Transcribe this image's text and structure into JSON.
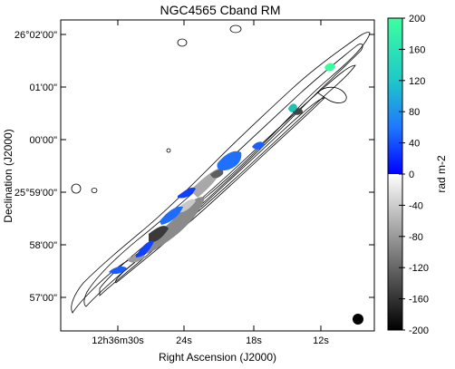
{
  "chart_data": {
    "type": "heatmap",
    "title": "NGC4565  Cband  RM",
    "xlabel": "Right Ascension (J2000)",
    "ylabel": "Declination (J2000)",
    "colorbar_label": "rad m-2",
    "x_ticks": [
      "12h36m30s",
      "24s",
      "18s",
      "12s"
    ],
    "y_ticks": [
      "26°02'00\"",
      "01'00\"",
      "00'00\"",
      "25°59'00\"",
      "58'00\"",
      "57'00\""
    ],
    "colorbar": {
      "range": [
        -200,
        200
      ],
      "ticks": [
        200,
        160,
        120,
        80,
        40,
        0,
        -40,
        -80,
        -120,
        -160,
        -200
      ],
      "colors": {
        "positive": [
          "#0000ff",
          "#1e90ff",
          "#20e0a0",
          "#3cffa0"
        ],
        "negative": [
          "#ffffff",
          "#000000"
        ]
      }
    },
    "rm_regions": [
      {
        "ra": "12h36m11.5s",
        "dec": "26°01'25\"",
        "rm": 180
      },
      {
        "ra": "12h36m14.5s",
        "dec": "26°00'42\"",
        "rm": 150
      },
      {
        "ra": "12h36m14.0s",
        "dec": "26°00'40\"",
        "rm": -150
      },
      {
        "ra": "12h36m18.8s",
        "dec": "26°00'00\"",
        "rm": 60
      },
      {
        "ra": "12h36m21.0s",
        "dec": "25°59'35\"",
        "rm": 40
      },
      {
        "ra": "12h36m22.3s",
        "dec": "25°59'15\"",
        "rm": -60
      },
      {
        "ra": "12h36m24.5s",
        "dec": "25°58'55\"",
        "rm": 30
      },
      {
        "ra": "12h36m26.0s",
        "dec": "25°58'30\"",
        "rm": 40
      },
      {
        "ra": "12h36m25.5s",
        "dec": "25°58'25\"",
        "rm": -120
      },
      {
        "ra": "12h36m27.0s",
        "dec": "25°58'00\"",
        "rm": -180
      },
      {
        "ra": "12h36m28.5s",
        "dec": "25°57'45\"",
        "rm": 50
      },
      {
        "ra": "12h36m31.5s",
        "dec": "25°57'20\"",
        "rm": 30
      }
    ],
    "beam": "filled black circle, lower-right",
    "contours": "galaxy total-intensity contours, nested ellipses along major axis",
    "grid": false,
    "legend": "none"
  }
}
